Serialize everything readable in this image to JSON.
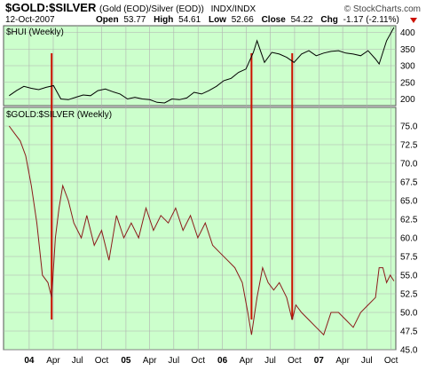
{
  "header": {
    "symbol": "$GOLD:$SILVER",
    "description": "(Gold (EOD)/Silver (EOD))",
    "exchange": "INDX/INDX",
    "copyright": "© StockCharts.com",
    "date": "12-Oct-2007",
    "open_label": "Open",
    "open_value": "53.77",
    "high_label": "High",
    "high_value": "54.61",
    "low_label": "Low",
    "low_value": "52.66",
    "close_label": "Close",
    "close_value": "54.22",
    "chg_label": "Chg",
    "chg_value": "-1.17 (-2.11%)"
  },
  "colors": {
    "panel_bg": "#ccffcc",
    "hui_line": "#000000",
    "ratio_line": "#8b1a1a",
    "marker": "#cc1100",
    "grid": "#b0b0b0",
    "chg_arrow": "#cc1100"
  },
  "chart_data": [
    {
      "type": "line",
      "title": "$HUI (Weekly)",
      "ylim": [
        180,
        420
      ],
      "yticks": [
        "400",
        "350",
        "300",
        "250",
        "200"
      ],
      "grid": true,
      "x": [
        "2003-10-17",
        "2003-11-14",
        "2003-12-12",
        "2004-01-09",
        "2004-02-06",
        "2004-03-05",
        "2004-04-02",
        "2004-04-30",
        "2004-05-28",
        "2004-06-25",
        "2004-07-23",
        "2004-08-20",
        "2004-09-17",
        "2004-10-15",
        "2004-11-12",
        "2004-12-10",
        "2005-01-07",
        "2005-02-04",
        "2005-03-04",
        "2005-04-01",
        "2005-04-29",
        "2005-05-27",
        "2005-06-24",
        "2005-07-22",
        "2005-08-19",
        "2005-09-16",
        "2005-10-14",
        "2005-11-11",
        "2005-12-09",
        "2006-01-06",
        "2006-02-03",
        "2006-03-03",
        "2006-03-31",
        "2006-04-28",
        "2006-05-12",
        "2006-06-09",
        "2006-07-07",
        "2006-08-04",
        "2006-09-01",
        "2006-09-29",
        "2006-10-27",
        "2006-11-24",
        "2006-12-22",
        "2007-01-19",
        "2007-02-16",
        "2007-03-16",
        "2007-04-13",
        "2007-05-11",
        "2007-06-08",
        "2007-07-06",
        "2007-08-03",
        "2007-08-17",
        "2007-09-14",
        "2007-10-12"
      ],
      "values": [
        210,
        225,
        238,
        232,
        228,
        235,
        240,
        200,
        198,
        205,
        212,
        210,
        225,
        230,
        222,
        215,
        200,
        205,
        200,
        198,
        190,
        188,
        200,
        198,
        203,
        220,
        215,
        225,
        238,
        255,
        262,
        280,
        290,
        340,
        375,
        310,
        340,
        335,
        325,
        310,
        335,
        345,
        330,
        338,
        343,
        345,
        338,
        335,
        330,
        345,
        320,
        305,
        375,
        415
      ]
    },
    {
      "type": "line",
      "title": "$GOLD:$SILVER (Weekly)",
      "ylim": [
        45,
        77.5
      ],
      "yticks": [
        "75.0",
        "72.5",
        "70.0",
        "67.5",
        "65.0",
        "62.5",
        "60.0",
        "57.5",
        "55.0",
        "52.5",
        "50.0",
        "47.5",
        "45.0"
      ],
      "grid": true,
      "x": [
        "2003-10-17",
        "2003-11-07",
        "2003-11-28",
        "2003-12-19",
        "2004-01-09",
        "2004-01-30",
        "2004-02-20",
        "2004-03-12",
        "2004-03-26",
        "2004-04-09",
        "2004-04-23",
        "2004-05-07",
        "2004-05-28",
        "2004-06-18",
        "2004-07-16",
        "2004-08-06",
        "2004-09-03",
        "2004-10-01",
        "2004-10-29",
        "2004-11-26",
        "2004-12-24",
        "2005-01-21",
        "2005-02-18",
        "2005-03-18",
        "2005-04-15",
        "2005-05-13",
        "2005-06-10",
        "2005-07-08",
        "2005-08-05",
        "2005-09-02",
        "2005-09-30",
        "2005-10-28",
        "2005-11-25",
        "2005-12-23",
        "2006-01-20",
        "2006-02-17",
        "2006-03-17",
        "2006-04-07",
        "2006-04-21",
        "2006-05-12",
        "2006-06-02",
        "2006-06-23",
        "2006-07-14",
        "2006-08-04",
        "2006-09-01",
        "2006-09-22",
        "2006-10-06",
        "2006-10-27",
        "2006-11-24",
        "2006-12-22",
        "2007-01-19",
        "2007-02-16",
        "2007-03-16",
        "2007-04-13",
        "2007-05-11",
        "2007-06-08",
        "2007-07-06",
        "2007-08-03",
        "2007-08-17",
        "2007-08-31",
        "2007-09-14",
        "2007-09-28",
        "2007-10-12"
      ],
      "values": [
        75,
        74,
        73,
        71,
        67,
        62,
        55,
        54,
        52,
        60,
        64,
        67,
        65,
        62,
        60,
        63,
        59,
        61,
        57,
        63,
        60,
        62,
        60,
        64,
        61,
        63,
        62,
        64,
        61,
        63,
        60,
        62,
        59,
        58,
        57,
        56,
        54,
        50,
        47,
        52,
        56,
        54,
        53,
        54,
        52,
        49,
        51,
        50,
        49,
        48,
        47,
        50,
        50,
        49,
        48,
        50,
        51,
        52,
        56,
        56,
        54,
        55,
        54.22
      ]
    }
  ],
  "x_axis": {
    "ticks": [
      {
        "label": "04",
        "date": "2004-01-01"
      },
      {
        "label": "Apr",
        "date": "2004-04-01"
      },
      {
        "label": "Jul",
        "date": "2004-07-01"
      },
      {
        "label": "Oct",
        "date": "2004-10-01"
      },
      {
        "label": "05",
        "date": "2005-01-01"
      },
      {
        "label": "Apr",
        "date": "2005-04-01"
      },
      {
        "label": "Jul",
        "date": "2005-07-01"
      },
      {
        "label": "Oct",
        "date": "2005-10-01"
      },
      {
        "label": "06",
        "date": "2006-01-01"
      },
      {
        "label": "Apr",
        "date": "2006-04-01"
      },
      {
        "label": "Jul",
        "date": "2006-07-01"
      },
      {
        "label": "Oct",
        "date": "2006-10-01"
      },
      {
        "label": "07",
        "date": "2007-01-01"
      },
      {
        "label": "Apr",
        "date": "2007-04-01"
      },
      {
        "label": "Jul",
        "date": "2007-07-01"
      },
      {
        "label": "Oct",
        "date": "2007-10-01"
      }
    ],
    "range": [
      "2003-09-26",
      "2007-10-19"
    ]
  },
  "annotations": {
    "vertical_markers": [
      "2004-03-26",
      "2006-04-21",
      "2006-09-22"
    ]
  }
}
